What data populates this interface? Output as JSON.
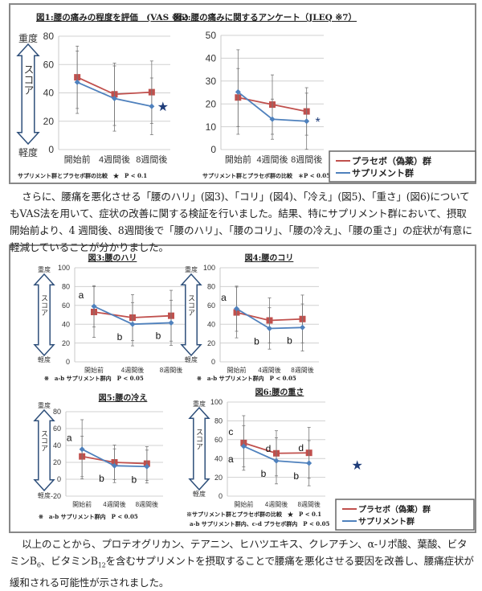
{
  "paragraph1": "さらに、腰痛を悪化させる「腰のハリ」(図3)、「コリ」(図4)、「冷え」(図5)、「重さ」(図6)についてもVAS法を用いて、症状の改善に関する検証を行いました。結果、特にサプリメント群において、摂取開始前より、4 週間後、8週間後で「腰のハリ」、「腰のコリ」、「腰の冷え」、「腰の重さ」の症状が有意に軽減していることが分かりました。",
  "paragraph2": {
    "part1": "以上のことから、プロテオグリカン、テアニン、ヒハツエキス、クレアチン、α-リポ酸、葉酸、ビタミンB",
    "sub1": "6",
    "part2": "、ビタミンB",
    "sub2": "12",
    "part3": "を含むサプリメントを摂取することで腰痛を悪化させる要因を改善し、腰痛症状が緩和される可能性が示されました。"
  },
  "legend": {
    "placebo": "プラセボ（偽薬）群",
    "supplement": "サプリメント群"
  },
  "arrow_labels": {
    "top": "重度",
    "middle": "スコア",
    "bottom": "軽度"
  },
  "colors": {
    "placebo": "#c0504d",
    "supplement": "#4f81bd",
    "star": "#1f3d7a",
    "arrow": "#2e4f7a"
  },
  "chart_data": [
    {
      "type": "line",
      "title": "図1:腰の痛みの程度を評価　(VAS ※6)",
      "categories": [
        "開始前",
        "4週間後",
        "8週間後"
      ],
      "ylim": [
        0,
        80
      ],
      "yticks": [
        0,
        20,
        40,
        60,
        80
      ],
      "grid": true,
      "arrow": true,
      "series": [
        {
          "name": "プラセボ（偽薬）群",
          "values": [
            51,
            39,
            40.5
          ],
          "error": [
            22,
            22,
            22
          ],
          "marker": "square"
        },
        {
          "name": "サプリメント群",
          "values": [
            47.5,
            36,
            30.5
          ],
          "error": [
            22,
            23,
            20
          ],
          "marker": "diamond"
        }
      ],
      "annotations": [
        {
          "series": 1,
          "point": 2,
          "text": "★",
          "pos": "right"
        }
      ],
      "footnotes": [
        "サプリメント群とプラセボ群の比較　★　P < 0.1"
      ]
    },
    {
      "type": "line",
      "title": "図2:腰の痛みに関するアンケート（JLEQ ※7）",
      "categories": [
        "開始前",
        "4週間後",
        "8週間後"
      ],
      "ylim": [
        0,
        50
      ],
      "yticks": [
        0,
        10,
        20,
        30,
        40,
        50
      ],
      "grid": true,
      "arrow": false,
      "series": [
        {
          "name": "プラセボ（偽薬）群",
          "values": [
            22.8,
            19.7,
            16.7
          ],
          "error": [
            12.7,
            13,
            10.4
          ],
          "marker": "square"
        },
        {
          "name": "サプリメント群",
          "values": [
            25.2,
            13.3,
            12.4
          ],
          "error": [
            18.5,
            8.8,
            12.3
          ],
          "marker": "diamond"
        }
      ],
      "annotations": [
        {
          "series": 1,
          "point": 2,
          "text": "*",
          "pos": "right"
        }
      ],
      "footnotes": [
        "サプリメント群とプラセボ群の比較　＊P < 0.05"
      ]
    },
    {
      "type": "line",
      "title": "図3:腰のハリ",
      "categories": [
        "開始前",
        "4週間後",
        "8週間後"
      ],
      "ylim": [
        0,
        100
      ],
      "yticks": [
        0,
        20,
        40,
        60,
        80,
        100
      ],
      "grid": true,
      "arrow": true,
      "series": [
        {
          "name": "プラセボ（偽薬）群",
          "values": [
            53,
            47,
            49
          ],
          "error": [
            27,
            24.5,
            27
          ],
          "marker": "square"
        },
        {
          "name": "サプリメント群",
          "values": [
            59,
            40,
            41.5
          ],
          "error": [
            22,
            23,
            24
          ],
          "marker": "diamond"
        }
      ],
      "annotations": [
        {
          "series": 1,
          "point": 0,
          "text": "a",
          "pos": "upleft"
        },
        {
          "series": 1,
          "point": 1,
          "text": "b",
          "pos": "downleft"
        },
        {
          "series": 1,
          "point": 2,
          "text": "b",
          "pos": "downleft"
        }
      ],
      "footnotes": [
        "※　a-b サプリメント群内　P < 0.05"
      ]
    },
    {
      "type": "line",
      "title": "図4:腰のコリ",
      "categories": [
        "開始前",
        "4週間後",
        "8週間後"
      ],
      "ylim": [
        0,
        100
      ],
      "yticks": [
        0,
        20,
        40,
        60,
        80,
        100
      ],
      "grid": true,
      "arrow": true,
      "series": [
        {
          "name": "プラセボ（偽薬）群",
          "values": [
            52.5,
            44,
            45.5
          ],
          "error": [
            27,
            24,
            25.5
          ],
          "marker": "square"
        },
        {
          "name": "サプリメント群",
          "values": [
            56.5,
            35.5,
            36.5
          ],
          "error": [
            24,
            22,
            25
          ],
          "marker": "diamond"
        }
      ],
      "annotations": [
        {
          "series": 1,
          "point": 0,
          "text": "a",
          "pos": "upleft"
        },
        {
          "series": 1,
          "point": 1,
          "text": "b",
          "pos": "downleft"
        },
        {
          "series": 1,
          "point": 2,
          "text": "b",
          "pos": "downleft"
        }
      ],
      "footnotes": [
        "※　a-b サプリメント群内　P < 0.05"
      ]
    },
    {
      "type": "line",
      "title": "図5:腰の冷え",
      "categories": [
        "開始前",
        "4週間後",
        "8週間後"
      ],
      "ylim": [
        -20,
        80
      ],
      "yticks": [
        -20,
        0,
        20,
        40,
        60,
        80
      ],
      "grid": true,
      "arrow": true,
      "series": [
        {
          "name": "プラセボ（偽薬）群",
          "values": [
            27,
            20,
            18.5
          ],
          "error": [
            24,
            20.5,
            20
          ],
          "marker": "square"
        },
        {
          "name": "サプリメント群",
          "values": [
            35.5,
            16,
            15
          ],
          "error": [
            35,
            20,
            19.5
          ],
          "marker": "diamond"
        }
      ],
      "annotations": [
        {
          "series": 1,
          "point": 0,
          "text": "a",
          "pos": "upleft"
        },
        {
          "series": 1,
          "point": 1,
          "text": "b",
          "pos": "downleft"
        },
        {
          "series": 1,
          "point": 2,
          "text": "b",
          "pos": "downleft"
        }
      ],
      "footnotes": [
        "※　a-b サプリメント群内　P < 0.05"
      ]
    },
    {
      "type": "line",
      "title": "図6:腰の重さ",
      "categories": [
        "開始前",
        "4週間後",
        "8週間後"
      ],
      "ylim": [
        0,
        100
      ],
      "yticks": [
        0,
        20,
        40,
        60,
        80,
        100
      ],
      "grid": true,
      "arrow": true,
      "series": [
        {
          "name": "プラセボ（偽薬）群",
          "values": [
            56.5,
            45.5,
            46
          ],
          "error": [
            29,
            24,
            27
          ],
          "marker": "square"
        },
        {
          "name": "サプリメント群",
          "values": [
            53,
            37.5,
            35
          ],
          "error": [
            22,
            24.5,
            24
          ],
          "marker": "diamond"
        }
      ],
      "annotations": [
        {
          "series": 0,
          "point": 0,
          "text": "c",
          "pos": "upleft"
        },
        {
          "series": 1,
          "point": 0,
          "text": "a",
          "pos": "downleft"
        },
        {
          "series": 0,
          "point": 1,
          "text": "d",
          "pos": "left"
        },
        {
          "series": 0,
          "point": 2,
          "text": "d",
          "pos": "left"
        },
        {
          "series": 1,
          "point": 1,
          "text": "b",
          "pos": "downleft"
        },
        {
          "series": 1,
          "point": 2,
          "text": "b",
          "pos": "downleft"
        },
        {
          "series": 1,
          "point": 2,
          "text": "★",
          "pos": "farright"
        }
      ],
      "footnotes": [
        "※サプリメント群とプラセボ群の比較　★　P < 0.1",
        "a-b サプリメント群内、c-d プラセボ群内　P < 0.05"
      ]
    }
  ]
}
